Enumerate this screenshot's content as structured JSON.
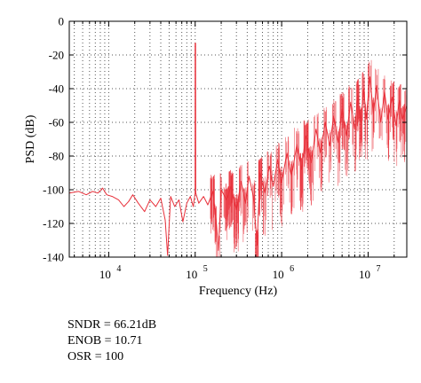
{
  "chart_data": {
    "type": "line",
    "xlabel": "Frequency (Hz)",
    "ylabel": "PSD (dB)",
    "xscale": "log",
    "xlim": [
      3500,
      28000000
    ],
    "ylim": [
      -140,
      0
    ],
    "yticks": [
      0,
      -20,
      -40,
      -60,
      -80,
      -100,
      -120,
      -140
    ],
    "xticks": [
      {
        "value": 10000,
        "base": "10",
        "exp": "4"
      },
      {
        "value": 100000,
        "base": "10",
        "exp": "5"
      },
      {
        "value": 1000000,
        "base": "10",
        "exp": "6"
      },
      {
        "value": 10000000,
        "base": "10",
        "exp": "7"
      }
    ],
    "grid": true,
    "line_color": "#e8303a",
    "series": [
      {
        "points": [
          [
            3500,
            -102
          ],
          [
            4500,
            -101
          ],
          [
            5500,
            -103
          ],
          [
            6500,
            -101
          ],
          [
            7500,
            -102
          ],
          [
            8500,
            -99
          ],
          [
            9500,
            -103
          ],
          [
            11000,
            -104
          ],
          [
            13000,
            -106
          ],
          [
            15000,
            -110
          ],
          [
            17000,
            -107
          ],
          [
            19000,
            -103
          ],
          [
            22000,
            -108
          ],
          [
            26000,
            -113
          ],
          [
            30000,
            -106
          ],
          [
            35000,
            -110
          ],
          [
            40000,
            -105
          ],
          [
            45000,
            -118
          ],
          [
            48000,
            -139
          ],
          [
            52000,
            -104
          ],
          [
            58000,
            -110
          ],
          [
            65000,
            -106
          ],
          [
            72000,
            -119
          ],
          [
            80000,
            -108
          ],
          [
            88000,
            -104
          ],
          [
            95000,
            -110
          ],
          [
            100000,
            -102
          ],
          [
            100000,
            -13
          ],
          [
            101000,
            -13
          ],
          [
            101500,
            -102
          ],
          [
            110000,
            -108
          ],
          [
            125000,
            -104
          ],
          [
            140000,
            -109
          ],
          [
            160000,
            -101
          ],
          [
            175000,
            -118
          ],
          [
            185000,
            -136
          ],
          [
            200000,
            -100
          ],
          [
            230000,
            -106
          ],
          [
            260000,
            -98
          ],
          [
            300000,
            -112
          ],
          [
            340000,
            -95
          ],
          [
            380000,
            -108
          ],
          [
            420000,
            -92
          ],
          [
            470000,
            -104
          ],
          [
            520000,
            -133
          ],
          [
            560000,
            -90
          ],
          [
            640000,
            -102
          ],
          [
            720000,
            -86
          ],
          [
            800000,
            -98
          ],
          [
            900000,
            -82
          ],
          [
            1000000,
            -96
          ],
          [
            1150000,
            -78
          ],
          [
            1300000,
            -92
          ],
          [
            1500000,
            -73
          ],
          [
            1700000,
            -88
          ],
          [
            1900000,
            -68
          ],
          [
            2200000,
            -84
          ],
          [
            2500000,
            -64
          ],
          [
            2800000,
            -78
          ],
          [
            3200000,
            -60
          ],
          [
            3600000,
            -74
          ],
          [
            4000000,
            -56
          ],
          [
            4500000,
            -72
          ],
          [
            5000000,
            -52
          ],
          [
            5600000,
            -68
          ],
          [
            6300000,
            -48
          ],
          [
            7000000,
            -64
          ],
          [
            7600000,
            -44
          ],
          [
            8200000,
            -60
          ],
          [
            8900000,
            -40
          ],
          [
            9500000,
            -58
          ],
          [
            10500000,
            -33
          ],
          [
            11500000,
            -55
          ],
          [
            12500000,
            -38
          ],
          [
            14000000,
            -60
          ],
          [
            15500000,
            -42
          ],
          [
            17000000,
            -58
          ],
          [
            19000000,
            -45
          ],
          [
            21000000,
            -62
          ],
          [
            23000000,
            -47
          ],
          [
            25000000,
            -58
          ],
          [
            28000000,
            -50
          ]
        ]
      }
    ]
  },
  "metrics": {
    "sndr": "SNDR = 66.21dB",
    "enob": "ENOB = 10.71",
    "osr": "OSR = 100"
  }
}
